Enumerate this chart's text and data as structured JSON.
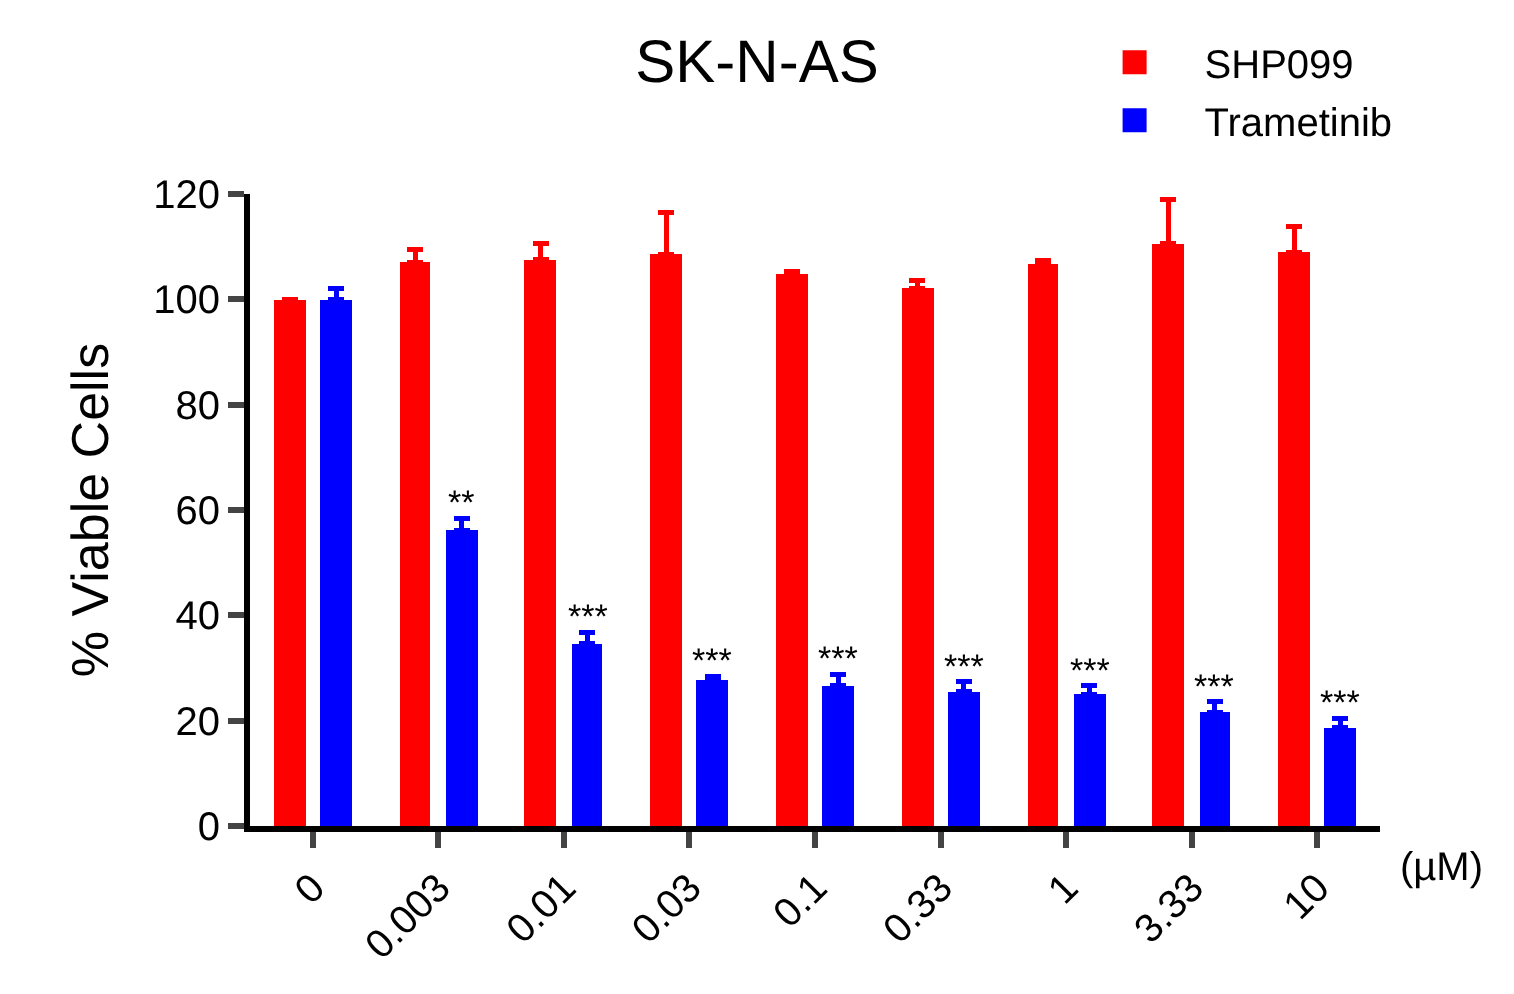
{
  "chart_data": {
    "type": "bar",
    "title": "SK-N-AS",
    "ylabel": "% Viable Cells",
    "xlabel": "(µM)",
    "categories": [
      "0",
      "0.003",
      "0.01",
      "0.03",
      "0.1",
      "0.33",
      "1",
      "3.33",
      "10"
    ],
    "series": [
      {
        "name": "SHP099",
        "color": "#ff0000",
        "values": [
          100,
          107,
          107.5,
          108.5,
          104.7,
          102,
          106.7,
          110.6,
          108.8
        ],
        "errors": [
          null,
          [
            107,
            109.5
          ],
          [
            107.5,
            110.6
          ],
          [
            108.5,
            116.4
          ],
          [
            104.7,
            105.2
          ],
          [
            102,
            103.5
          ],
          [
            106.7,
            107.4
          ],
          [
            110.6,
            118.9
          ],
          [
            108.8,
            113.9
          ]
        ]
      },
      {
        "name": "Trametinib",
        "color": "#0000ff",
        "values": [
          100,
          56.2,
          34.6,
          27.7,
          26.7,
          25.6,
          24.9,
          21.6,
          18.7
        ],
        "errors": [
          [
            100,
            102
          ],
          [
            56.2,
            58.4
          ],
          [
            34.6,
            36.8
          ],
          [
            27.7,
            28.3
          ],
          [
            26.7,
            28.8
          ],
          [
            25.6,
            27.4
          ],
          [
            24.9,
            26.7
          ],
          [
            21.6,
            23.6
          ],
          [
            18.7,
            20.5
          ]
        ]
      }
    ],
    "ylim": [
      0,
      120
    ],
    "yticks": [
      0,
      20,
      40,
      60,
      80,
      100,
      120
    ],
    "legend": "top right",
    "annotations": [
      {
        "text": "**",
        "x": "0.003",
        "y": 58.4
      },
      {
        "text": "***",
        "x": "0.01",
        "y": 36.8
      },
      {
        "text": "***",
        "x": "0.03",
        "y": 28.3
      },
      {
        "text": "***",
        "x": "0.1",
        "y": 28.8
      },
      {
        "text": "***",
        "x": "0.33",
        "y": 27.4
      },
      {
        "text": "***",
        "x": "1",
        "y": 26.7
      },
      {
        "text": "***",
        "x": "3.33",
        "y": 23.6
      },
      {
        "text": "***",
        "x": "10",
        "y": 20.5
      }
    ]
  }
}
